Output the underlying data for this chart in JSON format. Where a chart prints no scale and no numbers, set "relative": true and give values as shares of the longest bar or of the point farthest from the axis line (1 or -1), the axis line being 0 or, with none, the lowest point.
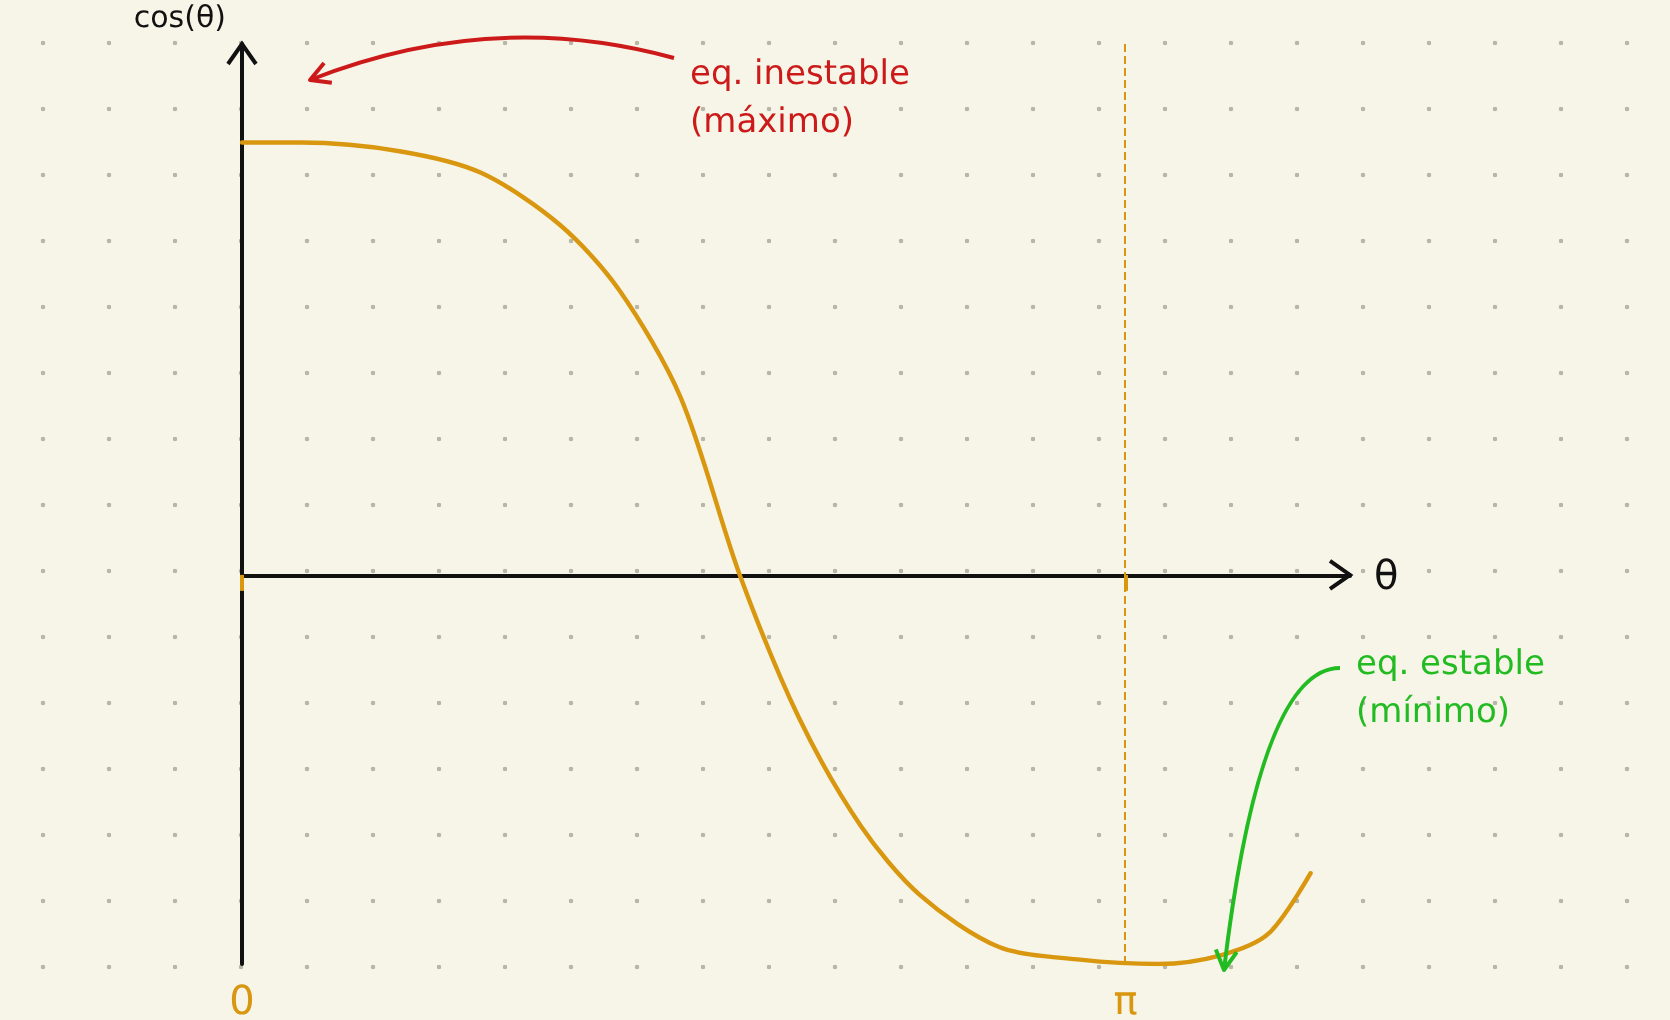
{
  "chart_data": {
    "type": "line",
    "relative": true,
    "xlabel": "θ",
    "ylabel": "cos(θ)",
    "x": [
      0,
      0.21,
      0.56,
      0.85,
      1.13,
      1.34,
      1.56,
      1.77,
      1.98,
      2.2,
      2.41,
      2.69,
      2.98,
      3.26,
      3.48,
      3.65,
      3.8
    ],
    "series": [
      {
        "color": "#d9960f",
        "values": [
          1.0,
          1.0,
          0.98,
          0.93,
          0.81,
          0.66,
          0.41,
          0,
          -0.33,
          -0.58,
          -0.74,
          -0.86,
          -0.89,
          -0.9,
          -0.88,
          -0.83,
          -0.69
        ]
      }
    ],
    "xlim": [
      0,
      3.94
    ],
    "xticks": [
      {
        "value": 0,
        "label": "0"
      },
      {
        "value": 3.1416,
        "label": "π"
      }
    ],
    "ref_lines": [
      {
        "axis": "x",
        "value": 3.1416,
        "color": "#d9960f",
        "line_style": "dashed"
      }
    ],
    "annotations": [
      "eq. inestable\n(máximo)",
      "eq. estable\n(mínimo)"
    ],
    "grid": false,
    "marker": "none",
    "line_style": "solid"
  }
}
